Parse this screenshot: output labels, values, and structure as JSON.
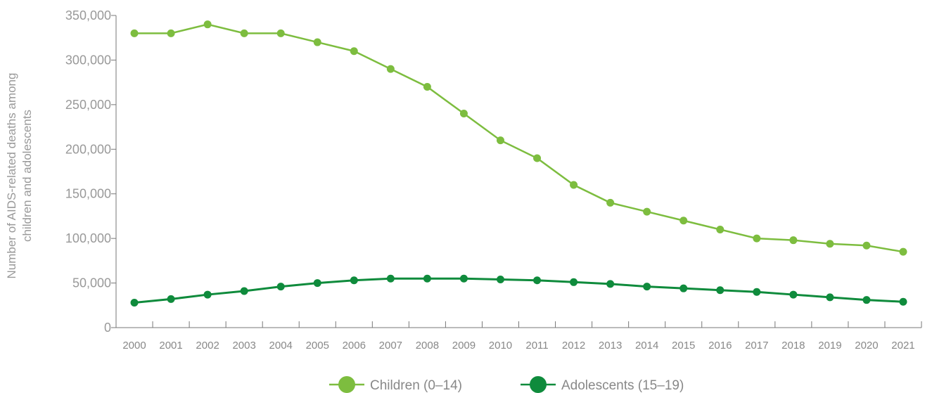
{
  "chart_data": {
    "type": "line",
    "ylabel_line1": "Number of AIDS-related deaths among",
    "ylabel_line2": "children and adolescents",
    "categories": [
      "2000",
      "2001",
      "2002",
      "2003",
      "2004",
      "2005",
      "2006",
      "2007",
      "2008",
      "2009",
      "2010",
      "2011",
      "2012",
      "2013",
      "2014",
      "2015",
      "2016",
      "2017",
      "2018",
      "2019",
      "2020",
      "2021"
    ],
    "ylim": [
      0,
      350000
    ],
    "yticks": [
      0,
      50000,
      100000,
      150000,
      200000,
      250000,
      300000,
      350000
    ],
    "ytick_labels": [
      "0",
      "50,000",
      "100,000",
      "150,000",
      "200,000",
      "250,000",
      "300,000",
      "350,000"
    ],
    "grid": false,
    "legend_position": "bottom-center",
    "series": [
      {
        "name": "Children (0–14)",
        "color": "#7dbd3f",
        "values": [
          330000,
          330000,
          340000,
          330000,
          330000,
          320000,
          310000,
          290000,
          270000,
          240000,
          210000,
          190000,
          160000,
          140000,
          130000,
          120000,
          110000,
          100000,
          98000,
          94000,
          92000,
          85000
        ]
      },
      {
        "name": "Adolescents (15–19)",
        "color": "#0f8b3c",
        "values": [
          28000,
          32000,
          37000,
          41000,
          46000,
          50000,
          53000,
          55000,
          55000,
          55000,
          54000,
          53000,
          51000,
          49000,
          46000,
          44000,
          42000,
          40000,
          37000,
          34000,
          31000,
          29000
        ]
      }
    ]
  }
}
